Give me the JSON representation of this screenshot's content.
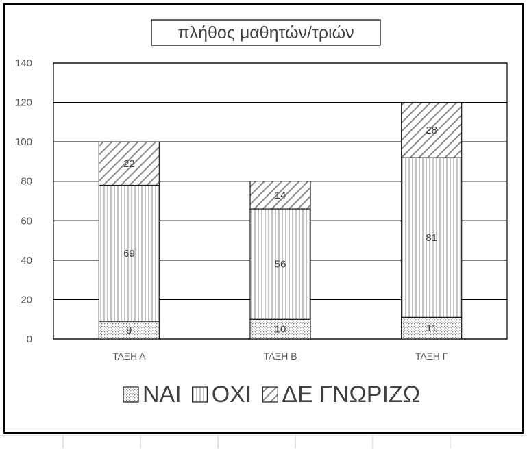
{
  "chart_data": {
    "type": "bar",
    "stacked": true,
    "title": "πλήθος μαθητών/τριών",
    "categories": [
      "ΤΑΞΗ Α",
      "ΤΑΞΗ Β",
      "ΤΑΞΗ Γ"
    ],
    "series": [
      {
        "name": "ΝΑΙ",
        "values": [
          9,
          10,
          11
        ],
        "pattern": "dots"
      },
      {
        "name": "ΟΧΙ",
        "values": [
          69,
          56,
          81
        ],
        "pattern": "vertical-lines"
      },
      {
        "name": "ΔΕ ΓΝΩΡΙΖΩ",
        "values": [
          22,
          14,
          28
        ],
        "pattern": "diagonal-lines"
      }
    ],
    "ylim": [
      0,
      140
    ],
    "yticks": [
      0,
      20,
      40,
      60,
      80,
      100,
      120,
      140
    ],
    "xlabel": "",
    "ylabel": "",
    "grid": true,
    "legend_position": "bottom",
    "colors": {
      "stroke": "#1a1a1a",
      "pattern": "#808080",
      "text": "#595959",
      "grid": "#000000"
    }
  }
}
